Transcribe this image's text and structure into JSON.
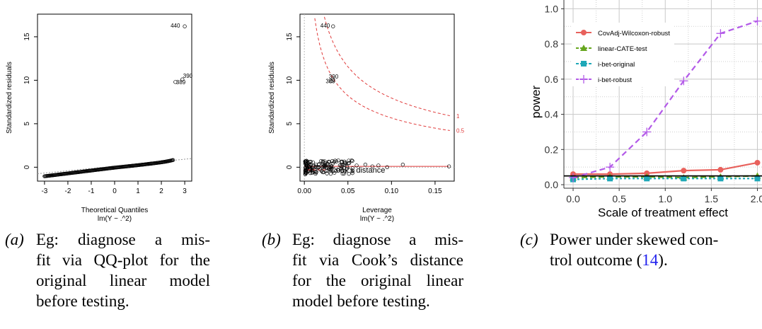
{
  "chart_data": [
    {
      "type": "scatter",
      "xlabel": "Theoretical Quantiles",
      "sublabel": "lm(Y ~ .^2)",
      "ylabel": "Standardized residuals",
      "xlim": [
        -3.3,
        3.3
      ],
      "ylim": [
        -1.6,
        17.6
      ],
      "xticks": [
        "-3",
        "-2",
        "-1",
        "0",
        "1",
        "2",
        "3"
      ],
      "yticks": [
        "0",
        "5",
        "10",
        "15"
      ],
      "points_label": "residual quantiles (body)",
      "outliers": [
        {
          "label": "440",
          "x": 3.0,
          "y": 16.2
        },
        {
          "label": "389",
          "x": 2.6,
          "y": 9.8
        },
        {
          "label": "390",
          "x": 2.9,
          "y": 10.1
        }
      ]
    },
    {
      "type": "scatter",
      "xlabel": "Leverage",
      "sublabel": "lm(Y ~ .^2)",
      "ylabel": "Standardized residuals",
      "xlim": [
        -0.005,
        0.172
      ],
      "ylim": [
        -1.6,
        17.6
      ],
      "xticks": [
        "0.00",
        "0.05",
        "0.10",
        "0.15"
      ],
      "yticks": [
        "0",
        "5",
        "10",
        "15"
      ],
      "legend": [
        "Cook's distance"
      ],
      "contour_labels": [
        "1",
        "0.5"
      ],
      "outliers": [
        {
          "label": "440",
          "x": 0.033,
          "y": 16.2
        },
        {
          "label": "389",
          "x": 0.031,
          "y": 9.9
        },
        {
          "label": "390",
          "x": 0.033,
          "y": 10.1
        }
      ]
    },
    {
      "type": "line",
      "xlabel": "Scale of treatment effect",
      "ylabel": "power",
      "x": [
        0.0,
        0.4,
        0.8,
        1.2,
        1.6,
        2.0
      ],
      "xticks": [
        "0.0",
        "0.5",
        "1.0",
        "1.5",
        "2.0"
      ],
      "yticks": [
        "0.0",
        "0.2",
        "0.4",
        "0.6",
        "0.8",
        "1.0"
      ],
      "xlim": [
        -0.1,
        2.05
      ],
      "ylim": [
        -0.02,
        1.05
      ],
      "reference_line": 0.05,
      "legend_position": "top-left",
      "series": [
        {
          "name": "CovAdj-Wilcoxon-robust",
          "values": [
            0.06,
            0.06,
            0.065,
            0.08,
            0.085,
            0.125
          ],
          "color": "#e8615c",
          "marker": "circle"
        },
        {
          "name": "linear-CATE-test",
          "values": [
            0.04,
            0.045,
            0.045,
            0.04,
            0.045,
            0.05
          ],
          "color": "#66a61e",
          "marker": "triangle"
        },
        {
          "name": "i-bet-original",
          "values": [
            0.03,
            0.035,
            0.035,
            0.035,
            0.035,
            0.035
          ],
          "color": "#1fa8b8",
          "marker": "square"
        },
        {
          "name": "i-bet-robust",
          "values": [
            0.04,
            0.1,
            0.3,
            0.59,
            0.86,
            0.93
          ],
          "color": "#b35ae8",
          "marker": "plus"
        }
      ]
    }
  ],
  "captions": [
    {
      "tag": "(a)",
      "lines": [
        "Eg: diagnose a mis-",
        "fit via QQ-plot for the",
        "original linear model",
        "before testing."
      ]
    },
    {
      "tag": "(b)",
      "lines": [
        "Eg: diagnose a mis-",
        "fit via Cook’s distance",
        "for the original linear",
        "model before testing."
      ]
    },
    {
      "tag": "(c)",
      "lines": [
        "Power under skewed con-",
        "trol outcome (",
        "14",
        ")."
      ]
    }
  ]
}
